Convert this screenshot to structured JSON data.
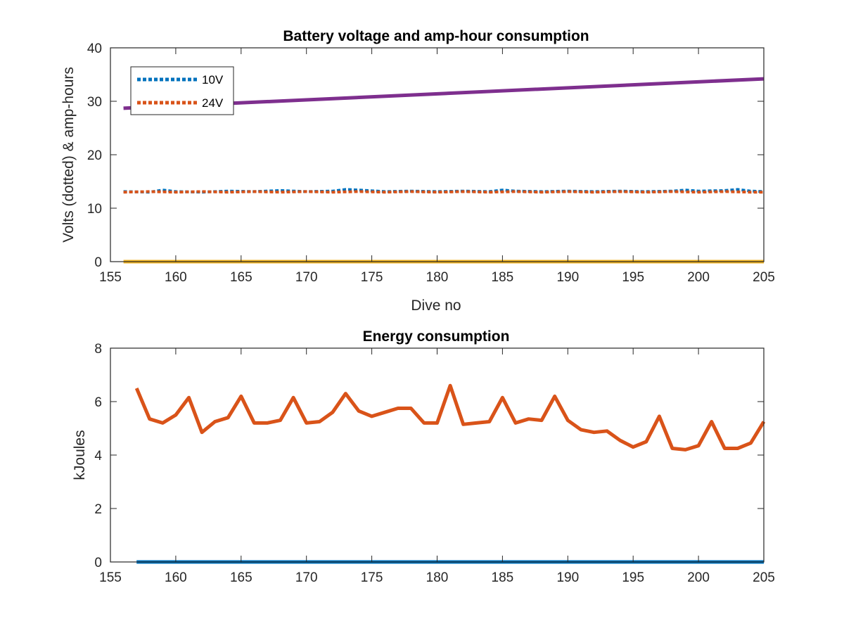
{
  "chart_data": [
    {
      "type": "line",
      "title": "Battery voltage and amp-hour consumption",
      "xlabel": "Dive no",
      "ylabel": "Volts (dotted) & amp-hours",
      "xlim": [
        155,
        205
      ],
      "ylim": [
        0,
        40
      ],
      "xticks": [
        "155",
        "160",
        "165",
        "170",
        "175",
        "180",
        "185",
        "190",
        "195",
        "200",
        "205"
      ],
      "yticks": [
        "0",
        "10",
        "20",
        "30",
        "40"
      ],
      "legend": {
        "placement": "top-left",
        "entries": [
          "10V",
          "24V"
        ]
      },
      "series": [
        {
          "name": "10V",
          "style": "dotted",
          "color": "#0072BD",
          "x": [
            156,
            158,
            159,
            160,
            162,
            164,
            166,
            168,
            170,
            172,
            173,
            174,
            176,
            178,
            180,
            182,
            184,
            185,
            186,
            188,
            190,
            192,
            194,
            196,
            198,
            199,
            200,
            202,
            203,
            204,
            205
          ],
          "y": [
            13.1,
            13.0,
            13.4,
            13.1,
            13.0,
            13.2,
            13.1,
            13.3,
            13.1,
            13.2,
            13.5,
            13.4,
            13.1,
            13.2,
            13.1,
            13.2,
            13.1,
            13.4,
            13.2,
            13.1,
            13.2,
            13.1,
            13.2,
            13.1,
            13.2,
            13.4,
            13.2,
            13.3,
            13.5,
            13.2,
            13.1
          ]
        },
        {
          "name": "24V",
          "style": "dotted",
          "color": "#D95319",
          "x": [
            156,
            158,
            160,
            162,
            164,
            166,
            168,
            170,
            172,
            174,
            176,
            178,
            180,
            182,
            184,
            186,
            188,
            190,
            192,
            194,
            196,
            198,
            200,
            202,
            204,
            205
          ],
          "y": [
            13.0,
            13.1,
            13.0,
            13.1,
            13.0,
            13.1,
            13.0,
            13.1,
            13.0,
            13.1,
            13.0,
            13.1,
            13.0,
            13.1,
            13.0,
            13.1,
            13.0,
            13.1,
            13.0,
            13.1,
            13.0,
            13.1,
            13.0,
            13.1,
            13.0,
            13.0
          ]
        },
        {
          "style": "solid",
          "color": "#7E2F8E",
          "x": [
            156,
            205
          ],
          "y": [
            28.7,
            34.2
          ]
        },
        {
          "style": "solid",
          "color": "#EDB120",
          "x": [
            156,
            205
          ],
          "y": [
            0,
            0
          ]
        }
      ]
    },
    {
      "type": "line",
      "title": "Energy consumption",
      "xlabel": "",
      "ylabel": "kJoules",
      "xlim": [
        155,
        205
      ],
      "ylim": [
        0,
        8
      ],
      "xticks": [
        "155",
        "160",
        "165",
        "170",
        "175",
        "180",
        "185",
        "190",
        "195",
        "200",
        "205"
      ],
      "yticks": [
        "0",
        "2",
        "4",
        "6",
        "8"
      ],
      "series": [
        {
          "style": "solid",
          "color": "#D95319",
          "x": [
            157,
            158,
            159,
            160,
            161,
            162,
            163,
            164,
            165,
            166,
            167,
            168,
            169,
            170,
            171,
            172,
            173,
            174,
            175,
            176,
            177,
            178,
            179,
            180,
            181,
            182,
            183,
            184,
            185,
            186,
            187,
            188,
            189,
            190,
            191,
            192,
            193,
            194,
            195,
            196,
            197,
            198,
            199,
            200,
            201,
            202,
            203,
            204,
            205
          ],
          "y": [
            6.5,
            5.35,
            5.2,
            5.5,
            6.15,
            4.85,
            5.25,
            5.4,
            6.2,
            5.2,
            5.2,
            5.3,
            6.15,
            5.2,
            5.25,
            5.6,
            6.3,
            5.65,
            5.45,
            5.6,
            5.75,
            5.75,
            5.2,
            5.2,
            6.6,
            5.15,
            5.2,
            5.25,
            6.15,
            5.2,
            5.35,
            5.3,
            6.2,
            5.3,
            4.95,
            4.85,
            4.9,
            4.55,
            4.3,
            4.5,
            5.45,
            4.25,
            4.2,
            4.35,
            5.25,
            4.25,
            4.25,
            4.45,
            5.25
          ]
        },
        {
          "style": "solid",
          "color": "#0072BD",
          "x": [
            157,
            205
          ],
          "y": [
            0,
            0
          ]
        }
      ]
    }
  ]
}
